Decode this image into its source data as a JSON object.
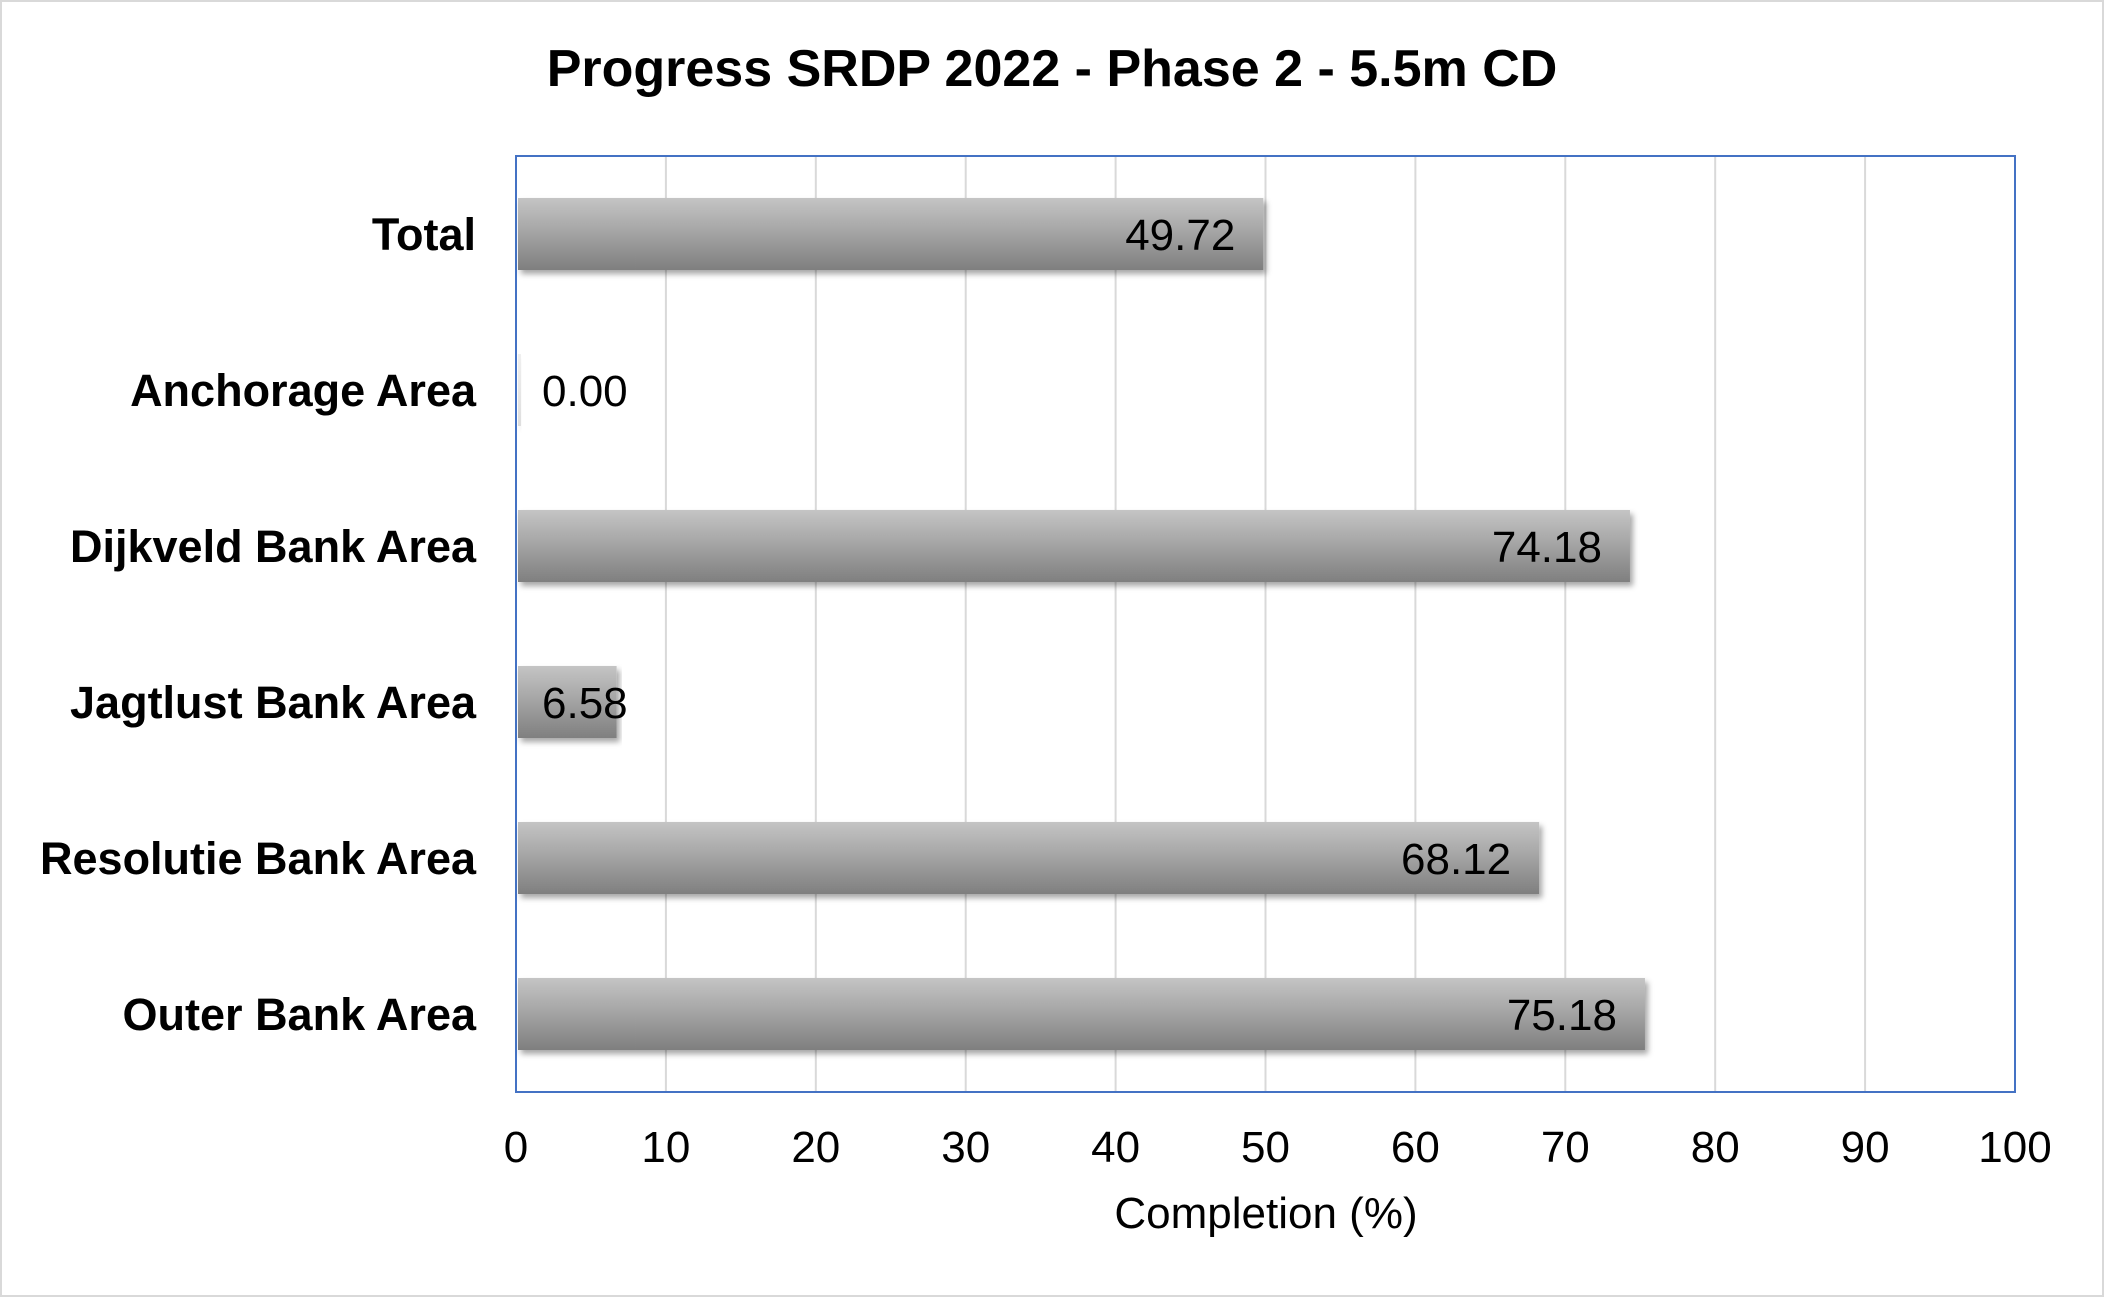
{
  "colors": {
    "bar_fill": "#a6a6a6",
    "bar_highlight": "#c4c4c4",
    "bar_shadow": "#7f7f7f",
    "gridline": "#d9d9d9",
    "plot_border": "#4472c4",
    "outer_border": "#d9d9d9"
  },
  "chart_data": {
    "type": "bar",
    "orientation": "horizontal",
    "title": "Progress SRDP 2022 - Phase 2 - 5.5m CD",
    "xlabel": "Completion (%)",
    "ylabel": "",
    "categories": [
      "Total",
      "Anchorage Area",
      "Dijkveld Bank Area",
      "Jagtlust Bank Area",
      "Resolutie Bank Area",
      "Outer Bank Area"
    ],
    "values": [
      49.72,
      0.0,
      74.18,
      6.58,
      68.12,
      75.18
    ],
    "data_labels": [
      "49.72",
      "0.00",
      "74.18",
      "6.58",
      "68.12",
      "75.18"
    ],
    "xlim": [
      0,
      100
    ],
    "xticks": [
      "0",
      "10",
      "20",
      "30",
      "40",
      "50",
      "60",
      "70",
      "80",
      "90",
      "100"
    ],
    "grid": true,
    "legend": "none"
  }
}
